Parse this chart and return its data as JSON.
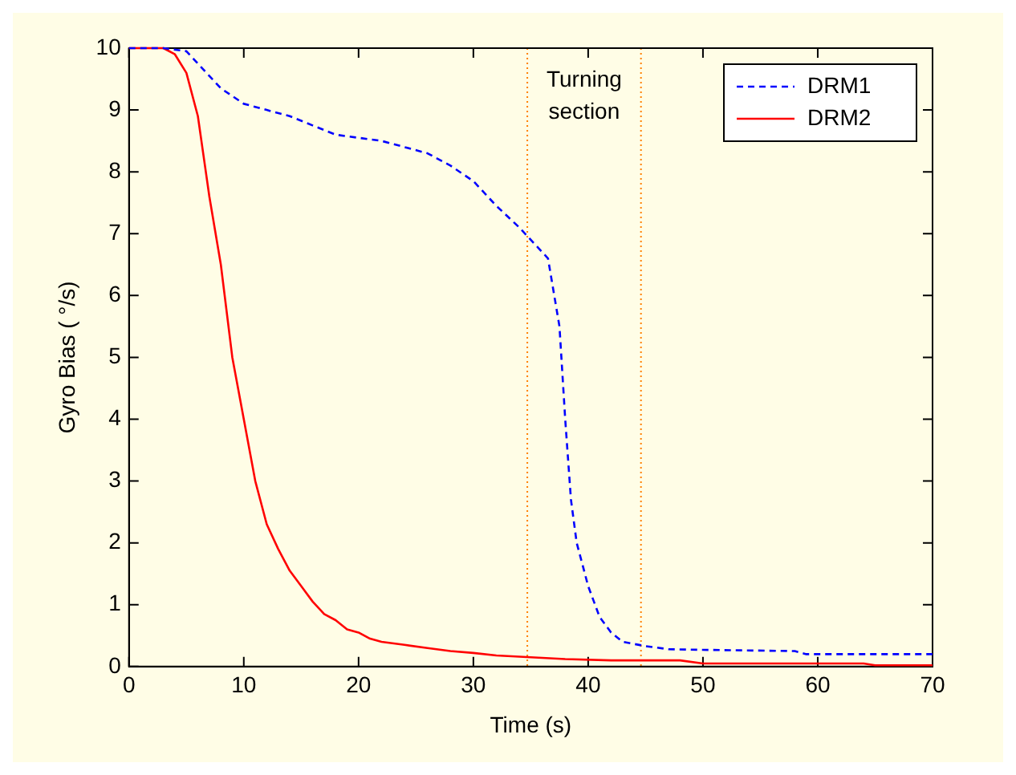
{
  "chart_data": {
    "type": "line",
    "xlabel": "Time (s)",
    "ylabel": "Gyro Bias ( °/s)",
    "xlim": [
      0,
      70
    ],
    "xticks": [
      0,
      10,
      20,
      30,
      40,
      50,
      60,
      70
    ],
    "ylim": [
      0,
      10
    ],
    "yticks": [
      0,
      1,
      2,
      3,
      4,
      5,
      6,
      7,
      8,
      9,
      10
    ],
    "grid": false,
    "legend": "top right",
    "marker": "none",
    "series": [
      {
        "name": "DRM1",
        "color": "#0000ff",
        "line_style": "dashed",
        "x": [
          0,
          3,
          5,
          6,
          8,
          10,
          12,
          14,
          16,
          18,
          20,
          22,
          24,
          26,
          28,
          30,
          32,
          34,
          35,
          36.5,
          37.5,
          38,
          38.5,
          39,
          40,
          41,
          42,
          43,
          45,
          47,
          50,
          58,
          59,
          70
        ],
        "values": [
          10,
          10,
          9.95,
          9.75,
          9.35,
          9.1,
          9,
          8.9,
          8.75,
          8.6,
          8.55,
          8.5,
          8.4,
          8.3,
          8.1,
          7.85,
          7.45,
          7.1,
          6.9,
          6.6,
          5.5,
          4,
          2.7,
          2,
          1.3,
          0.8,
          0.55,
          0.4,
          0.33,
          0.28,
          0.27,
          0.25,
          0.2,
          0.2
        ]
      },
      {
        "name": "DRM2",
        "color": "#ff0000",
        "line_style": "solid",
        "x": [
          0,
          3,
          4,
          5,
          6,
          7,
          8,
          9,
          10,
          11,
          12,
          13,
          14,
          15,
          16,
          17,
          18,
          19,
          20,
          21,
          22,
          24,
          26,
          28,
          30,
          32,
          35,
          38,
          42,
          48,
          50,
          60,
          64,
          65,
          70
        ],
        "values": [
          10,
          10,
          9.9,
          9.6,
          8.9,
          7.6,
          6.5,
          5,
          4,
          3,
          2.3,
          1.9,
          1.55,
          1.3,
          1.05,
          0.85,
          0.75,
          0.6,
          0.55,
          0.45,
          0.4,
          0.35,
          0.3,
          0.25,
          0.22,
          0.18,
          0.15,
          0.12,
          0.1,
          0.1,
          0.05,
          0.05,
          0.05,
          0.02,
          0.02
        ]
      }
    ],
    "ref_lines": [
      {
        "axis": "x",
        "value": 34.7,
        "color": "#ff8000",
        "line_style": "dotted"
      },
      {
        "axis": "x",
        "value": 44.6,
        "color": "#ff8000",
        "line_style": "dotted"
      }
    ],
    "annotations": [
      "Turning section"
    ]
  }
}
